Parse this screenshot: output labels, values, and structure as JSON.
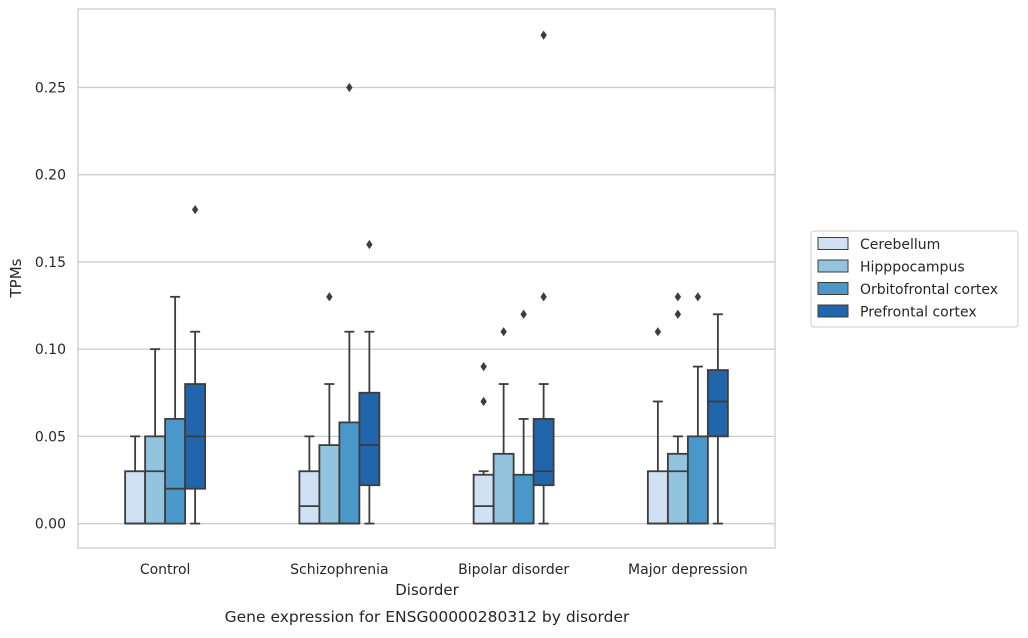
{
  "chart_data": {
    "type": "boxplot",
    "caption": "Gene expression for ENSG00000280312 by disorder",
    "xlabel": "Disorder",
    "ylabel": "TPMs",
    "ylim": [
      -0.014,
      0.295
    ],
    "yticks": [
      "0.00",
      "0.05",
      "0.10",
      "0.15",
      "0.20",
      "0.25"
    ],
    "grid": true,
    "legend_position": "right",
    "categories": [
      "Control",
      "Schizophrenia",
      "Bipolar disorder",
      "Major depression"
    ],
    "series": [
      {
        "name": "Cerebellum",
        "color": "#cfe1f2",
        "boxes": [
          {
            "whislo": 0.0,
            "q1": 0.0,
            "med": 0.0,
            "q3": 0.03,
            "whishi": 0.05,
            "fliers": []
          },
          {
            "whislo": 0.0,
            "q1": 0.0,
            "med": 0.01,
            "q3": 0.03,
            "whishi": 0.05,
            "fliers": []
          },
          {
            "whislo": 0.0,
            "q1": 0.0,
            "med": 0.01,
            "q3": 0.028,
            "whishi": 0.03,
            "fliers": [
              0.07,
              0.09
            ]
          },
          {
            "whislo": 0.0,
            "q1": 0.0,
            "med": 0.0,
            "q3": 0.03,
            "whishi": 0.07,
            "fliers": [
              0.11
            ]
          }
        ]
      },
      {
        "name": "Hipppocampus",
        "color": "#93c4de",
        "boxes": [
          {
            "whislo": 0.0,
            "q1": 0.0,
            "med": 0.03,
            "q3": 0.05,
            "whishi": 0.1,
            "fliers": []
          },
          {
            "whislo": 0.0,
            "q1": 0.0,
            "med": 0.0,
            "q3": 0.045,
            "whishi": 0.08,
            "fliers": [
              0.13
            ]
          },
          {
            "whislo": 0.0,
            "q1": 0.0,
            "med": 0.0,
            "q3": 0.04,
            "whishi": 0.08,
            "fliers": [
              0.11
            ]
          },
          {
            "whislo": 0.0,
            "q1": 0.0,
            "med": 0.03,
            "q3": 0.04,
            "whishi": 0.05,
            "fliers": [
              0.12,
              0.13
            ]
          }
        ]
      },
      {
        "name": "Orbitofrontal cortex",
        "color": "#4a98c9",
        "boxes": [
          {
            "whislo": 0.0,
            "q1": 0.0,
            "med": 0.02,
            "q3": 0.06,
            "whishi": 0.13,
            "fliers": []
          },
          {
            "whislo": 0.0,
            "q1": 0.0,
            "med": 0.0,
            "q3": 0.058,
            "whishi": 0.11,
            "fliers": [
              0.25
            ]
          },
          {
            "whislo": 0.0,
            "q1": 0.0,
            "med": 0.0,
            "q3": 0.028,
            "whishi": 0.06,
            "fliers": [
              0.12
            ]
          },
          {
            "whislo": 0.0,
            "q1": 0.0,
            "med": 0.0,
            "q3": 0.05,
            "whishi": 0.09,
            "fliers": [
              0.13
            ]
          }
        ]
      },
      {
        "name": "Prefrontal cortex",
        "color": "#2166ac",
        "boxes": [
          {
            "whislo": 0.0,
            "q1": 0.02,
            "med": 0.05,
            "q3": 0.08,
            "whishi": 0.11,
            "fliers": [
              0.18
            ]
          },
          {
            "whislo": 0.0,
            "q1": 0.022,
            "med": 0.045,
            "q3": 0.075,
            "whishi": 0.11,
            "fliers": [
              0.16
            ]
          },
          {
            "whislo": 0.0,
            "q1": 0.022,
            "med": 0.03,
            "q3": 0.06,
            "whishi": 0.08,
            "fliers": [
              0.13,
              0.28
            ]
          },
          {
            "whislo": 0.0,
            "q1": 0.05,
            "med": 0.07,
            "q3": 0.088,
            "whishi": 0.12,
            "fliers": []
          }
        ]
      }
    ]
  }
}
